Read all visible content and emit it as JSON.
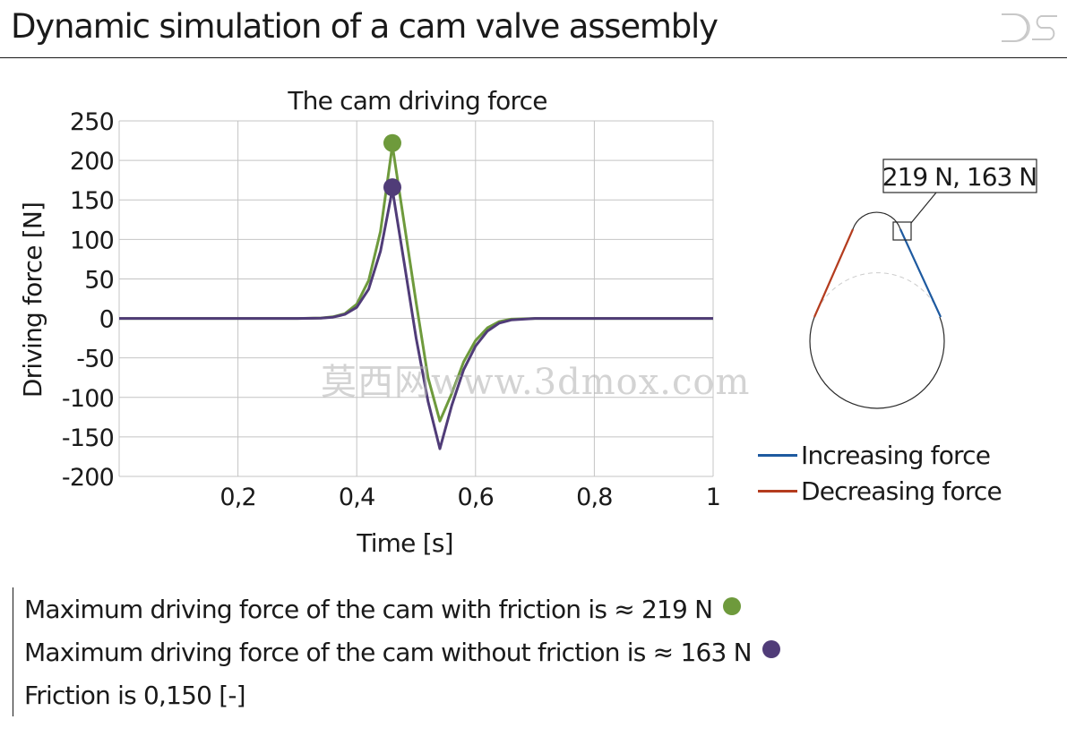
{
  "header": {
    "title": "Dynamic simulation of a cam valve assembly",
    "logo": "DS"
  },
  "chart_data": {
    "type": "line",
    "title": "The cam driving force",
    "xlabel": "Time [s]",
    "ylabel": "Driving force [N]",
    "xlim": [
      0,
      1
    ],
    "ylim": [
      -200,
      250
    ],
    "xticks": [
      {
        "value": 0.2,
        "label": "0,2"
      },
      {
        "value": 0.4,
        "label": "0,4"
      },
      {
        "value": 0.6,
        "label": "0,6"
      },
      {
        "value": 0.8,
        "label": "0,8"
      },
      {
        "value": 1.0,
        "label": "1"
      }
    ],
    "yticks": [
      {
        "value": 250,
        "label": "250"
      },
      {
        "value": 200,
        "label": "200"
      },
      {
        "value": 150,
        "label": "150"
      },
      {
        "value": 100,
        "label": "100"
      },
      {
        "value": 50,
        "label": "50"
      },
      {
        "value": 0,
        "label": "0"
      },
      {
        "value": -50,
        "label": "-50"
      },
      {
        "value": -100,
        "label": "-100"
      },
      {
        "value": -150,
        "label": "-150"
      },
      {
        "value": -200,
        "label": "-200"
      }
    ],
    "grid": true,
    "series": [
      {
        "color": "#6e9a3c",
        "x": [
          0,
          0.3,
          0.34,
          0.36,
          0.38,
          0.4,
          0.42,
          0.44,
          0.46,
          0.48,
          0.5,
          0.52,
          0.54,
          0.56,
          0.58,
          0.6,
          0.62,
          0.64,
          0.66,
          0.7,
          1.0
        ],
        "y": [
          0,
          0,
          0.5,
          2,
          6,
          18,
          48,
          110,
          219,
          120,
          20,
          -75,
          -130,
          -95,
          -55,
          -28,
          -12,
          -4,
          -1,
          0,
          0
        ],
        "peak": {
          "x": 0.46,
          "y": 222
        }
      },
      {
        "color": "#503c78",
        "x": [
          0,
          0.3,
          0.34,
          0.36,
          0.38,
          0.4,
          0.42,
          0.44,
          0.46,
          0.48,
          0.5,
          0.52,
          0.54,
          0.56,
          0.58,
          0.6,
          0.62,
          0.64,
          0.66,
          0.7,
          1.0
        ],
        "y": [
          0,
          0,
          0.4,
          1.5,
          5,
          14,
          37,
          85,
          163,
          70,
          -25,
          -105,
          -165,
          -110,
          -65,
          -35,
          -16,
          -6,
          -2,
          0,
          0
        ],
        "peak": {
          "x": 0.46,
          "y": 166
        }
      }
    ]
  },
  "cam_diagram": {
    "callout": "219 N, 163 N"
  },
  "legend": {
    "items": [
      {
        "label": "Increasing force",
        "color": "#1e5aa0"
      },
      {
        "label": "Decreasing force",
        "color": "#b43c1e"
      }
    ]
  },
  "notes": {
    "line1": "Maximum driving force of the cam with friction is ≈ 219 N",
    "line2": "Maximum driving force of the cam without friction is ≈ 163 N",
    "line3": "Friction is 0,150 [-]",
    "dot1_color": "#6e9a3c",
    "dot2_color": "#503c78"
  },
  "watermark": "莫西网www.3dmox.com"
}
